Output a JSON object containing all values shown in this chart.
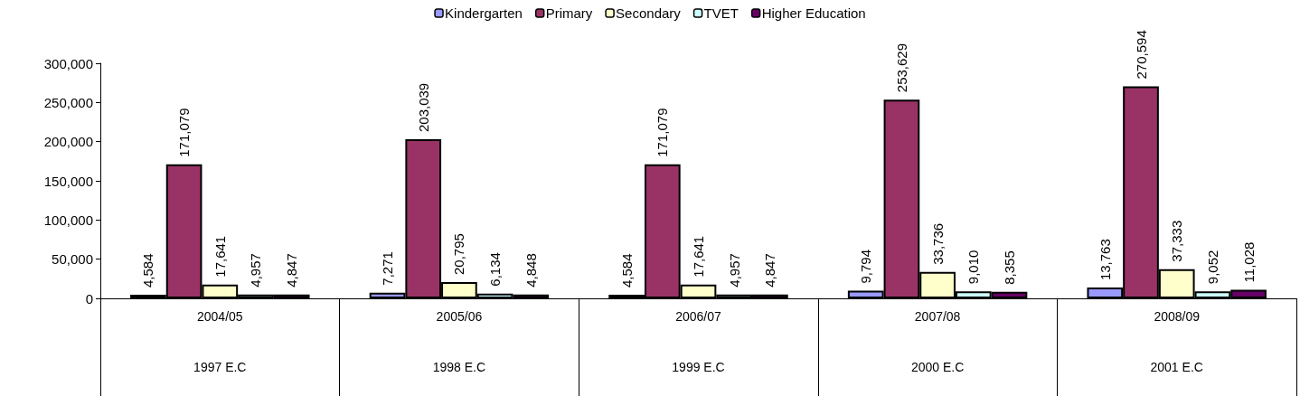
{
  "chart_data": {
    "type": "bar",
    "categories": [
      "2004/05\n1997 E.C",
      "2005/06\n1998 E.C",
      "2006/07\n1999 E.C",
      "2007/08\n2000 E.C",
      "2008/09\n2001 E.C"
    ],
    "series": [
      {
        "name": "Kindergarten",
        "color": "#9999ff",
        "values": [
          4584,
          7271,
          4584,
          9794,
          13763
        ],
        "value_labels": [
          "4,584",
          "7,271",
          "4,584",
          "9,794",
          "13,763"
        ]
      },
      {
        "name": "Primary",
        "color": "#993366",
        "values": [
          171079,
          203039,
          171079,
          253629,
          270594
        ],
        "value_labels": [
          "171,079",
          "203,039",
          "171,079",
          "253,629",
          "270,594"
        ]
      },
      {
        "name": "Secondary",
        "color": "#ffffcc",
        "values": [
          17641,
          20795,
          17641,
          33736,
          37333
        ],
        "value_labels": [
          "17,641",
          "20,795",
          "17,641",
          "33,736",
          "37,333"
        ]
      },
      {
        "name": "TVET",
        "color": "#ccffff",
        "values": [
          4957,
          6134,
          4957,
          9010,
          9052
        ],
        "value_labels": [
          "4,957",
          "6,134",
          "4,957",
          "9,010",
          "9,052"
        ]
      },
      {
        "name": "Higher Education",
        "color": "#660066",
        "values": [
          4847,
          4848,
          4847,
          8355,
          11028
        ],
        "value_labels": [
          "4,847",
          "4,848",
          "4,847",
          "8,355",
          "11,028"
        ]
      }
    ],
    "ylim": [
      0,
      300000
    ],
    "yticks": [
      {
        "value": 0,
        "label": "0"
      },
      {
        "value": 50000,
        "label": "50,000"
      },
      {
        "value": 100000,
        "label": "100,000"
      },
      {
        "value": 150000,
        "label": "150,000"
      },
      {
        "value": 200000,
        "label": "200,000"
      },
      {
        "value": 250000,
        "label": "250,000"
      },
      {
        "value": 300000,
        "label": "300,000"
      }
    ],
    "legend": "top",
    "grid": false
  }
}
